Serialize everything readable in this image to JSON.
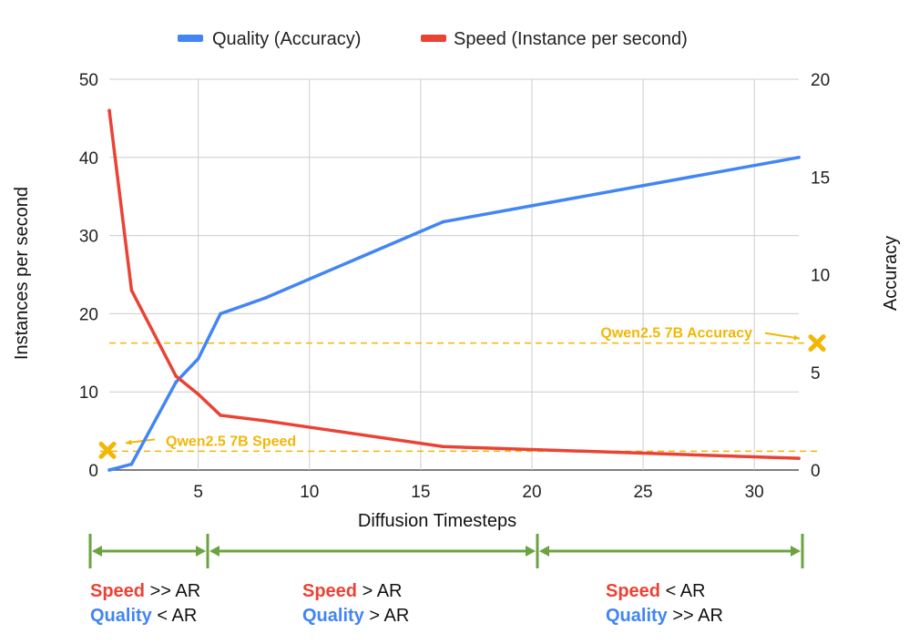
{
  "chart_data": {
    "type": "line",
    "dual_axis": true,
    "legend": [
      {
        "name": "Quality (Accuracy)",
        "color": "#4285f4"
      },
      {
        "name": "Speed (Instance per second)",
        "color": "#ea4335"
      }
    ],
    "xlabel": "Diffusion Timesteps",
    "ylabel_left": "Instances per second",
    "ylabel_right": "Accuracy",
    "xlim": [
      1,
      32
    ],
    "ylim_left": [
      0,
      50
    ],
    "ylim_right": [
      0,
      20
    ],
    "x_ticks": [
      5,
      10,
      15,
      20,
      25,
      30
    ],
    "y_ticks_left": [
      0,
      10,
      20,
      30,
      40,
      50
    ],
    "y_ticks_right": [
      0,
      5,
      10,
      15,
      20
    ],
    "grid": true,
    "series": [
      {
        "name": "Quality (Accuracy)",
        "axis": "right",
        "color": "#4285f4",
        "x": [
          1,
          2,
          4,
          5,
          6,
          8,
          16,
          32
        ],
        "values": [
          0,
          0.3,
          4.5,
          5.7,
          8.0,
          8.8,
          12.7,
          16.0
        ]
      },
      {
        "name": "Speed (Instance per second)",
        "axis": "left",
        "color": "#ea4335",
        "x": [
          1,
          2,
          4,
          5,
          6,
          8,
          16,
          32
        ],
        "values": [
          46,
          23,
          12,
          9.7,
          7,
          6.3,
          3,
          1.5
        ]
      }
    ],
    "reference_lines": [
      {
        "label": "Qwen2.5 7B Accuracy",
        "axis": "right",
        "value": 6.5,
        "marker_x": 32
      },
      {
        "label": "Qwen2.5 7B Speed",
        "axis": "left",
        "value": 2.4,
        "marker_x": 1
      }
    ],
    "regions": [
      {
        "x_start": 1,
        "x_end": 5.4,
        "speed_word": "Speed",
        "speed_rest": " >> AR",
        "quality_word": "Quality",
        "quality_rest": " < AR"
      },
      {
        "x_start": 5.4,
        "x_end": 20.2,
        "speed_word": "Speed",
        "speed_rest": " > AR",
        "quality_word": "Quality",
        "quality_rest": " > AR"
      },
      {
        "x_start": 20.2,
        "x_end": 32.2,
        "speed_word": "Speed",
        "speed_rest": " < AR",
        "quality_word": "Quality",
        "quality_rest": " >> AR"
      }
    ],
    "colors": {
      "grid": "#cccccc",
      "reference": "#f2b705",
      "bracket": "#6aa33f",
      "speed": "#ea4335",
      "quality": "#4285f4"
    }
  }
}
